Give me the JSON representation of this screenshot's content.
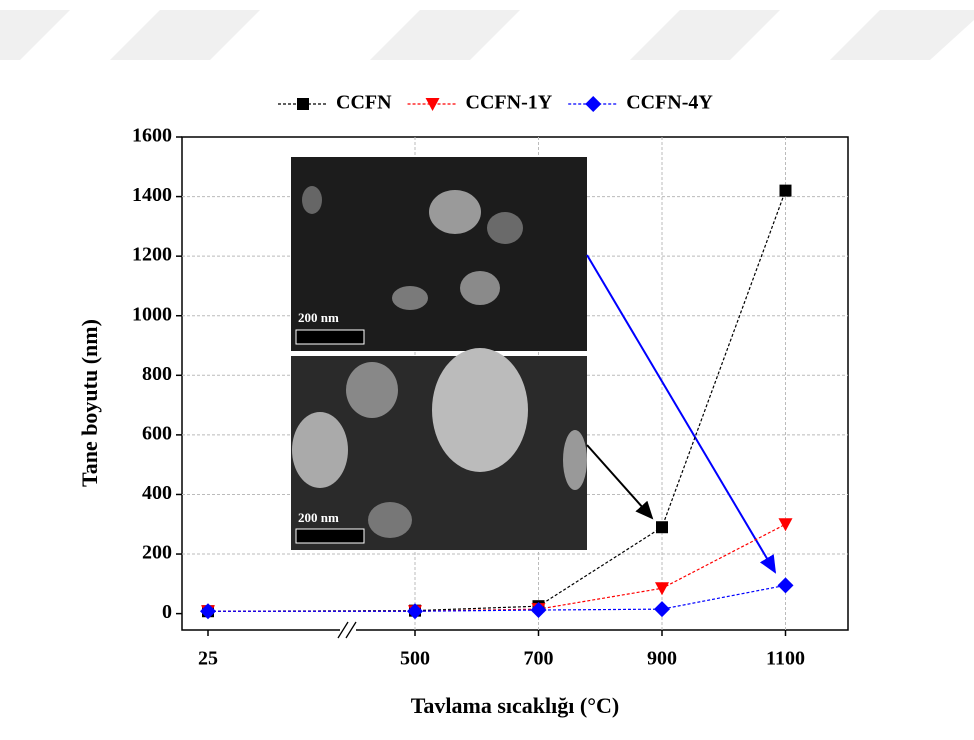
{
  "chart_data": {
    "type": "line",
    "x_label": "Tavlama sıcaklığı (°C)",
    "y_label": "Tane boyutu (nm)",
    "categories": [
      "25",
      "500",
      "700",
      "900",
      "1100"
    ],
    "series": [
      {
        "name": "CCFN",
        "color": "#000000",
        "marker": "square",
        "values": [
          8,
          10,
          25,
          290,
          1420
        ]
      },
      {
        "name": "CCFN-1Y",
        "color": "#ff0000",
        "marker": "triangle-down",
        "values": [
          8,
          8,
          15,
          85,
          300
        ]
      },
      {
        "name": "CCFN-4Y",
        "color": "#0000ff",
        "marker": "diamond",
        "values": [
          8,
          8,
          12,
          15,
          95
        ]
      }
    ],
    "ylim": [
      -55,
      1600
    ],
    "yticks": [
      0,
      200,
      400,
      600,
      800,
      1000,
      1200,
      1400,
      1600
    ],
    "grid": true,
    "legend": "top",
    "annotations": [
      "200 nm",
      "200 nm"
    ]
  }
}
